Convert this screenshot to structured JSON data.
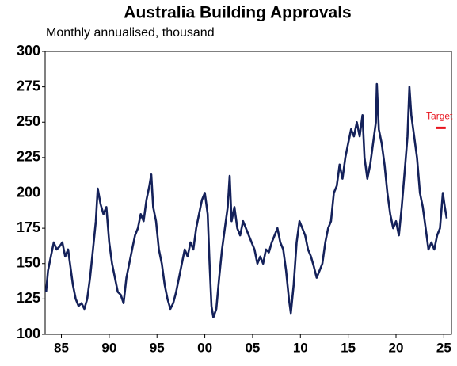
{
  "chart_data": {
    "type": "line",
    "title": "Australia Building Approvals",
    "subtitle": "Monthly annualised, thousand",
    "xlim": [
      1983.3,
      2025.8
    ],
    "xticks": [
      {
        "value": 1985,
        "label": "85"
      },
      {
        "value": 1990,
        "label": "90"
      },
      {
        "value": 1995,
        "label": "95"
      },
      {
        "value": 2000,
        "label": "00"
      },
      {
        "value": 2005,
        "label": "05"
      },
      {
        "value": 2010,
        "label": "10"
      },
      {
        "value": 2015,
        "label": "15"
      },
      {
        "value": 2020,
        "label": "20"
      },
      {
        "value": 2025,
        "label": "25"
      }
    ],
    "ylim": [
      100,
      300
    ],
    "yticks": [
      100,
      125,
      150,
      175,
      200,
      225,
      250,
      275,
      300
    ],
    "target": {
      "label": "Target",
      "value": 246,
      "x": [
        2024.2,
        2025.2
      ],
      "color": "#e8141e"
    },
    "series": [
      {
        "color": "#14215a",
        "x": [
          1983.4,
          1983.6,
          1983.9,
          1984.2,
          1984.5,
          1984.8,
          1985.1,
          1985.4,
          1985.7,
          1985.9,
          1986.2,
          1986.5,
          1986.8,
          1987.1,
          1987.4,
          1987.7,
          1988.0,
          1988.3,
          1988.6,
          1988.8,
          1989.1,
          1989.4,
          1989.7,
          1990.0,
          1990.3,
          1990.6,
          1990.9,
          1991.2,
          1991.5,
          1991.8,
          1992.1,
          1992.4,
          1992.7,
          1993.0,
          1993.3,
          1993.6,
          1993.9,
          1994.2,
          1994.4,
          1994.6,
          1994.9,
          1995.2,
          1995.5,
          1995.8,
          1996.1,
          1996.4,
          1996.7,
          1997.0,
          1997.3,
          1997.6,
          1997.9,
          1998.2,
          1998.5,
          1998.8,
          1999.1,
          1999.4,
          1999.7,
          2000.0,
          2000.3,
          2000.5,
          2000.7,
          2000.9,
          2001.2,
          2001.5,
          2001.8,
          2002.1,
          2002.4,
          2002.6,
          2002.8,
          2003.1,
          2003.4,
          2003.7,
          2004.0,
          2004.3,
          2004.6,
          2004.9,
          2005.2,
          2005.5,
          2005.8,
          2006.1,
          2006.4,
          2006.7,
          2007.0,
          2007.3,
          2007.6,
          2007.9,
          2008.2,
          2008.5,
          2008.8,
          2009.0,
          2009.3,
          2009.6,
          2009.9,
          2010.2,
          2010.5,
          2010.8,
          2011.1,
          2011.4,
          2011.7,
          2012.0,
          2012.3,
          2012.6,
          2012.9,
          2013.2,
          2013.5,
          2013.8,
          2014.1,
          2014.4,
          2014.7,
          2015.0,
          2015.3,
          2015.6,
          2015.9,
          2016.2,
          2016.5,
          2016.7,
          2017.0,
          2017.3,
          2017.6,
          2017.9,
          2018.0,
          2018.2,
          2018.5,
          2018.8,
          2019.1,
          2019.4,
          2019.7,
          2020.0,
          2020.3,
          2020.6,
          2020.9,
          2021.2,
          2021.4,
          2021.6,
          2021.9,
          2022.2,
          2022.5,
          2022.8,
          2023.1,
          2023.4,
          2023.7,
          2024.0,
          2024.3,
          2024.6,
          2024.9,
          2025.1,
          2025.3
        ],
        "values": [
          130,
          145,
          155,
          165,
          160,
          162,
          165,
          155,
          160,
          150,
          135,
          125,
          120,
          122,
          118,
          125,
          140,
          160,
          180,
          203,
          192,
          185,
          190,
          165,
          150,
          140,
          130,
          128,
          122,
          140,
          150,
          160,
          170,
          175,
          185,
          180,
          195,
          205,
          213,
          190,
          180,
          160,
          150,
          135,
          125,
          118,
          122,
          130,
          140,
          150,
          160,
          155,
          165,
          160,
          175,
          185,
          195,
          200,
          185,
          150,
          120,
          112,
          118,
          140,
          160,
          175,
          190,
          212,
          180,
          190,
          175,
          170,
          180,
          175,
          170,
          165,
          160,
          150,
          155,
          150,
          160,
          158,
          165,
          170,
          175,
          165,
          160,
          145,
          125,
          115,
          135,
          165,
          180,
          175,
          170,
          160,
          155,
          148,
          140,
          145,
          150,
          165,
          175,
          180,
          200,
          205,
          220,
          210,
          225,
          235,
          245,
          240,
          250,
          240,
          255,
          225,
          210,
          220,
          235,
          250,
          277,
          245,
          235,
          220,
          200,
          185,
          175,
          180,
          170,
          190,
          215,
          240,
          275,
          255,
          240,
          225,
          200,
          190,
          175,
          160,
          165,
          160,
          170,
          175,
          200,
          190,
          182
        ]
      }
    ]
  }
}
